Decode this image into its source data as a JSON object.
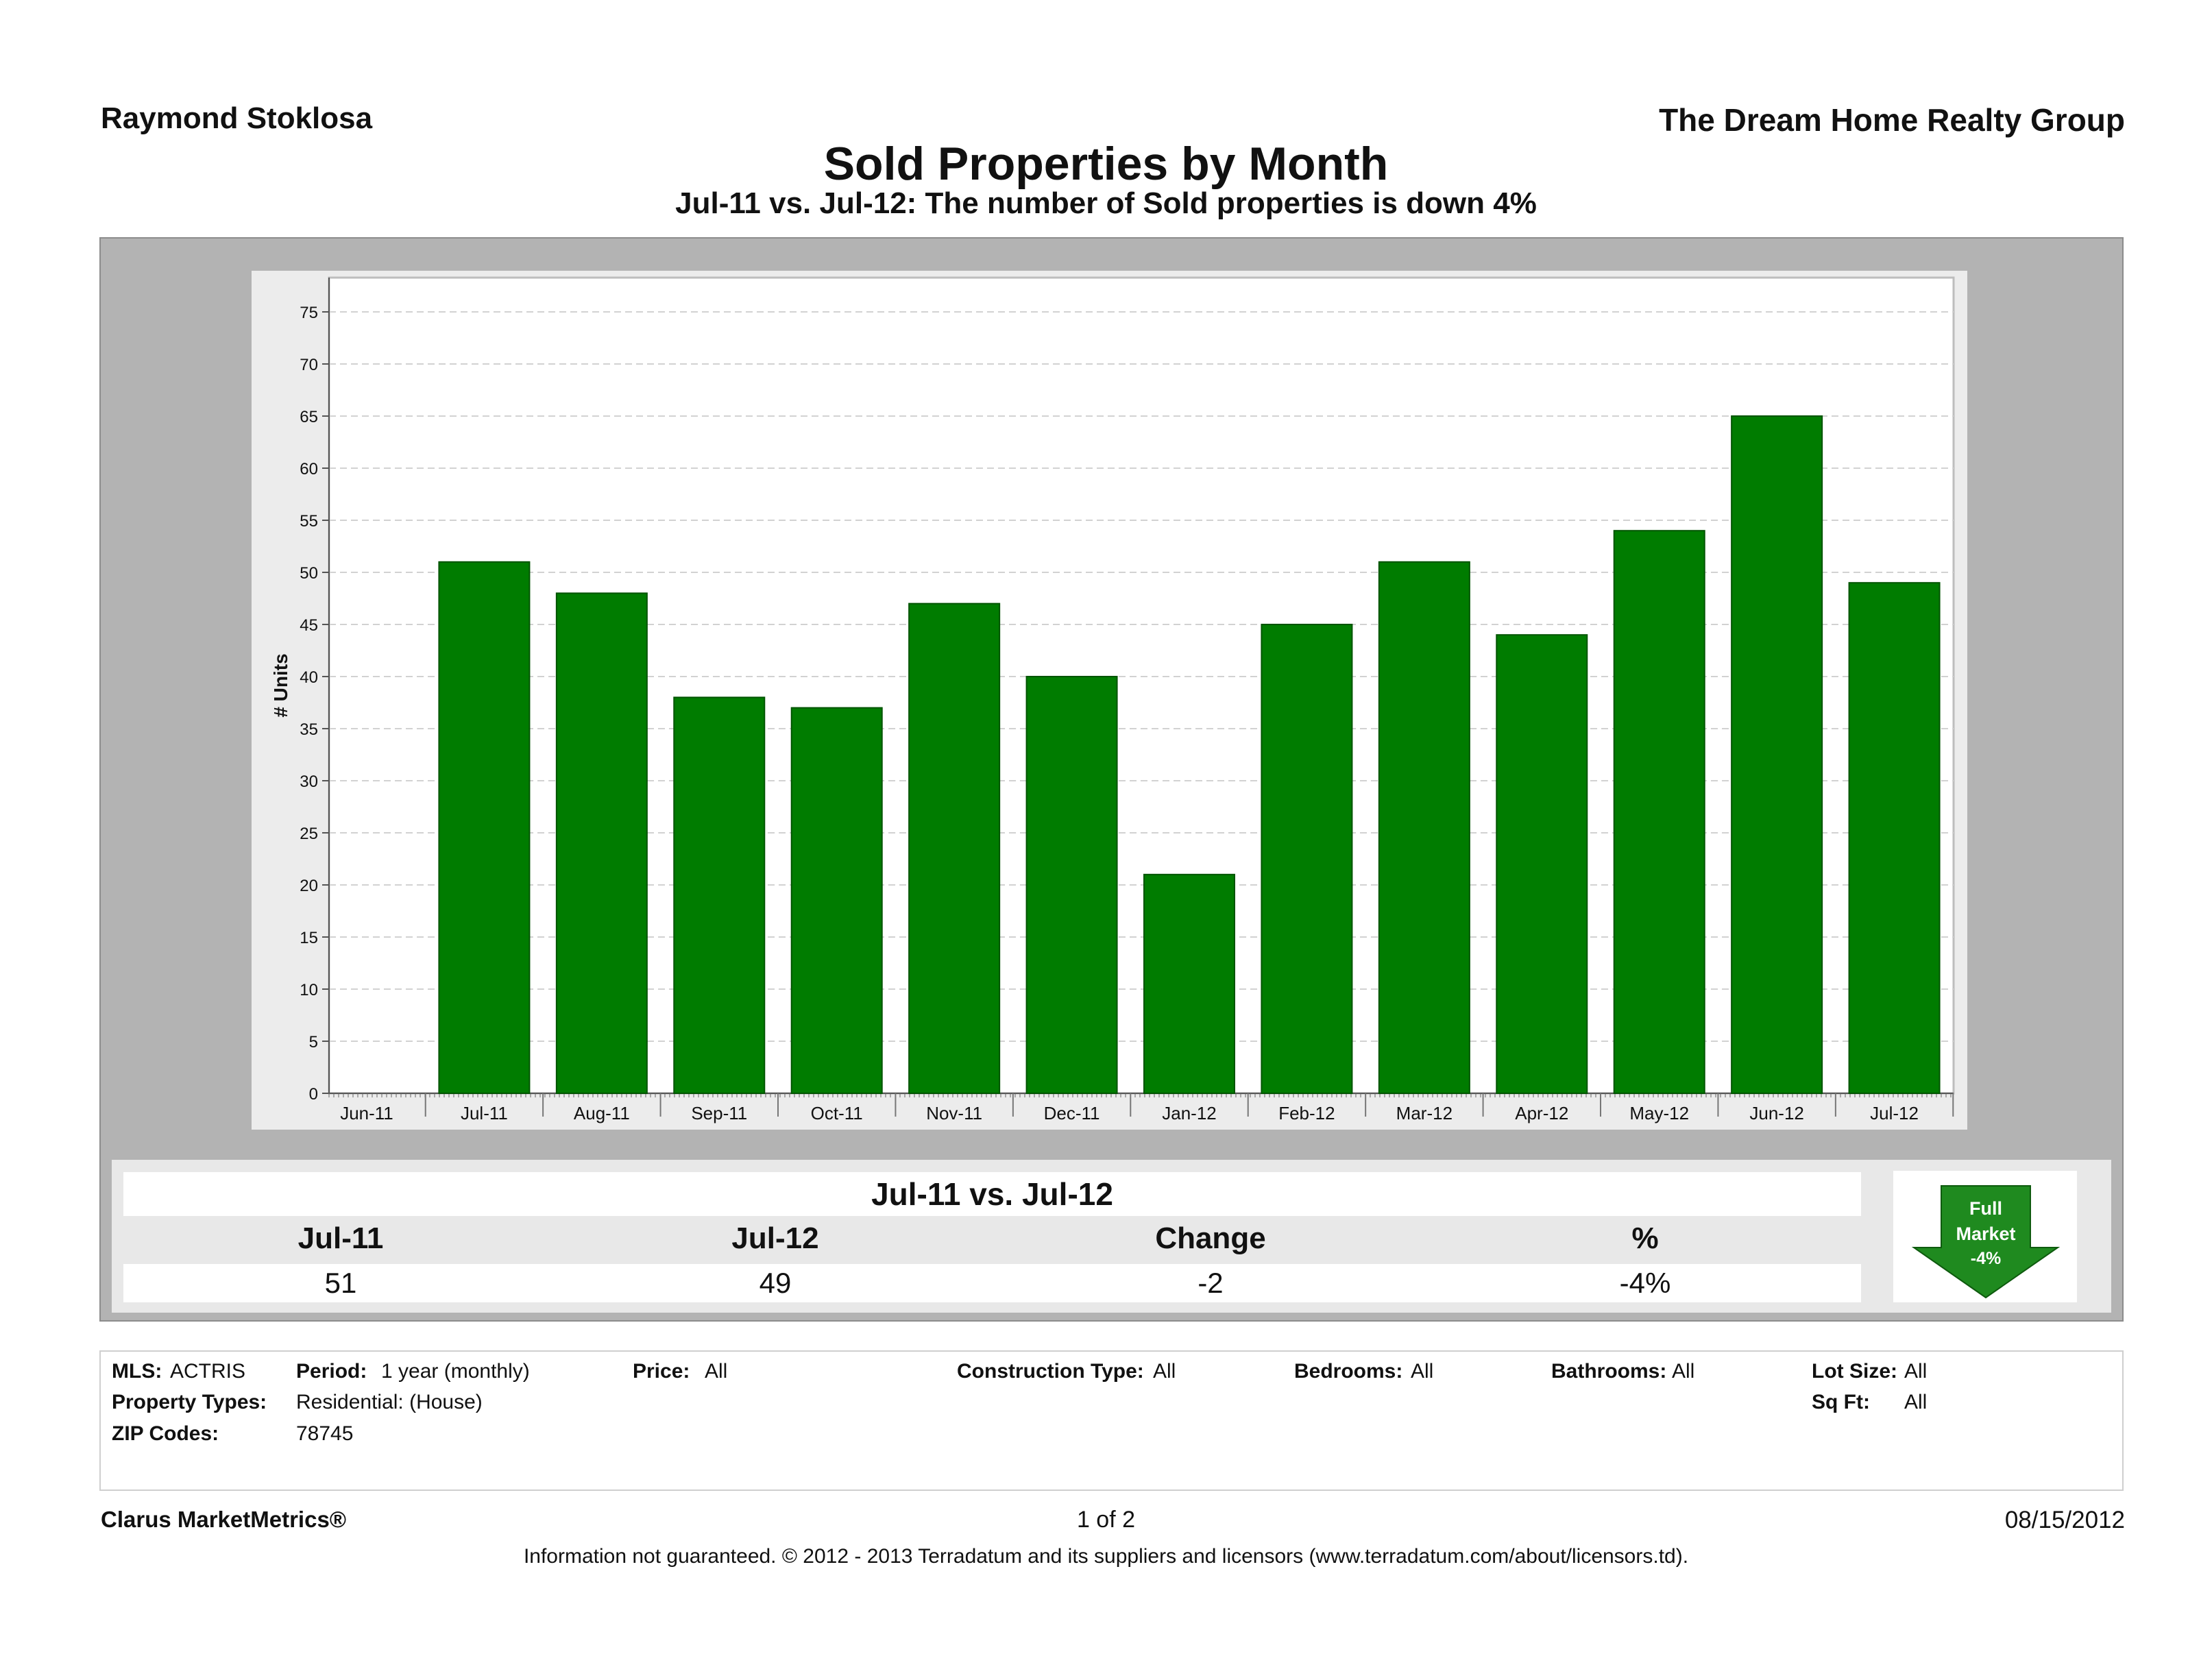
{
  "header": {
    "agent": "Raymond Stoklosa",
    "company": "The Dream Home Realty Group",
    "title": "Sold Properties by Month",
    "subtitle": "Jul-11 vs. Jul-12: The number of Sold properties is down 4%"
  },
  "chart_data": {
    "type": "bar",
    "categories": [
      "Jun-11",
      "Jul-11",
      "Aug-11",
      "Sep-11",
      "Oct-11",
      "Nov-11",
      "Dec-11",
      "Jan-12",
      "Feb-12",
      "Mar-12",
      "Apr-12",
      "May-12",
      "Jun-12",
      "Jul-12"
    ],
    "values": [
      null,
      51,
      48,
      38,
      37,
      47,
      40,
      21,
      45,
      51,
      44,
      54,
      65,
      49
    ],
    "ylabel": "# Units",
    "ylim": [
      0,
      75
    ],
    "yticks": [
      0,
      5,
      10,
      15,
      20,
      25,
      30,
      35,
      40,
      45,
      50,
      55,
      60,
      65,
      70,
      75
    ],
    "grid": true,
    "bar_color": "#007c00"
  },
  "summary": {
    "heading": "Jul-11 vs. Jul-12",
    "columns": [
      "Jul-11",
      "Jul-12",
      "Change",
      "%"
    ],
    "values": [
      "51",
      "49",
      "-2",
      "-4%"
    ],
    "badge": {
      "line1": "Full",
      "line2": "Market",
      "line3": "-4%",
      "color": "#1f8a1f"
    }
  },
  "filters": {
    "mls_label": "MLS:",
    "mls_value": "ACTRIS",
    "period_label": "Period:",
    "period_value": "1 year (monthly)",
    "price_label": "Price:",
    "price_value": "All",
    "construction_label": "Construction Type:",
    "construction_value": "All",
    "bedrooms_label": "Bedrooms:",
    "bedrooms_value": "All",
    "bathrooms_label": "Bathrooms:",
    "bathrooms_value": "All",
    "lotsize_label": "Lot Size:",
    "lotsize_value": "All",
    "proptypes_label": "Property Types:",
    "proptypes_value": "Residential: (House)",
    "sqft_label": "Sq Ft:",
    "sqft_value": "All",
    "zip_label": "ZIP Codes:",
    "zip_value": "78745"
  },
  "footer": {
    "brand": "Clarus MarketMetrics®",
    "page": "1 of 2",
    "date": "08/15/2012",
    "disclaimer": "Information not guaranteed.  © 2012 - 2013 Terradatum and its suppliers and licensors (www.terradatum.com/about/licensors.td)."
  }
}
